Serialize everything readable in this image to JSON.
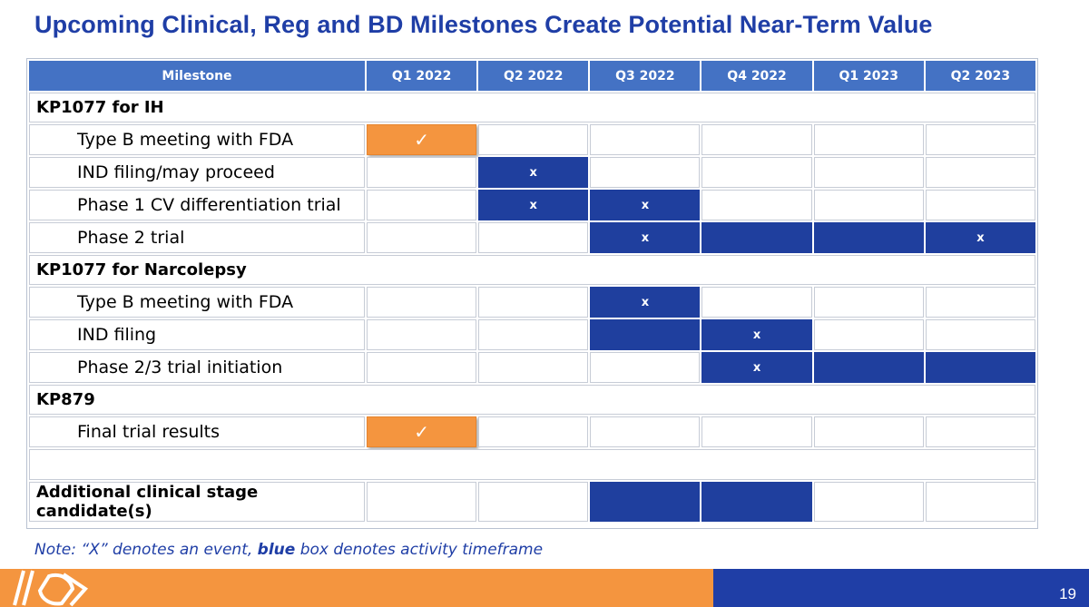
{
  "title": "Upcoming Clinical, Reg and BD Milestones Create Potential Near-Term Value",
  "table": {
    "headers": [
      "Milestone",
      "Q1 2022",
      "Q2 2022",
      "Q3 2022",
      "Q4 2022",
      "Q1 2023",
      "Q2 2023"
    ],
    "groups": [
      {
        "name": "KP1077 for IH",
        "rows": [
          {
            "label": "Type B meeting with FDA",
            "cells": [
              "check",
              "",
              "",
              "",
              "",
              ""
            ]
          },
          {
            "label": "IND filing/may proceed",
            "cells": [
              "",
              "x",
              "",
              "",
              "",
              ""
            ]
          },
          {
            "label": "Phase 1 CV differentiation trial",
            "cells": [
              "",
              "x",
              "x",
              "",
              "",
              ""
            ]
          },
          {
            "label": "Phase 2 trial",
            "cells": [
              "",
              "",
              "x",
              "blue",
              "blue",
              "x"
            ]
          }
        ]
      },
      {
        "name": "KP1077 for Narcolepsy",
        "rows": [
          {
            "label": "Type B meeting with FDA",
            "cells": [
              "",
              "",
              "x",
              "",
              "",
              ""
            ]
          },
          {
            "label": "IND filing",
            "cells": [
              "",
              "",
              "blue",
              "x",
              "",
              ""
            ]
          },
          {
            "label": "Phase 2/3 trial initiation",
            "cells": [
              "",
              "",
              "",
              "x",
              "blue",
              "blue"
            ]
          }
        ]
      },
      {
        "name": "KP879",
        "rows": [
          {
            "label": "Final trial results",
            "cells": [
              "check",
              "",
              "",
              "",
              "",
              ""
            ]
          }
        ]
      }
    ],
    "additional": {
      "label": "Additional clinical stage candidate(s)",
      "cells": [
        "",
        "",
        "blue",
        "blue",
        "",
        ""
      ]
    },
    "event_marker": "x",
    "check_marker": "✓"
  },
  "note": {
    "prefix": "Note:  “X” denotes an event, ",
    "bold": "blue",
    "suffix": " box denotes activity timeframe"
  },
  "page_number": "19",
  "colors": {
    "title": "#1f3ea6",
    "header": "#4472c4",
    "activity_blue": "#1f3f9e",
    "completed_orange": "#f4953f",
    "footer_orange": "#f4953f",
    "footer_blue": "#1f3ea6"
  }
}
